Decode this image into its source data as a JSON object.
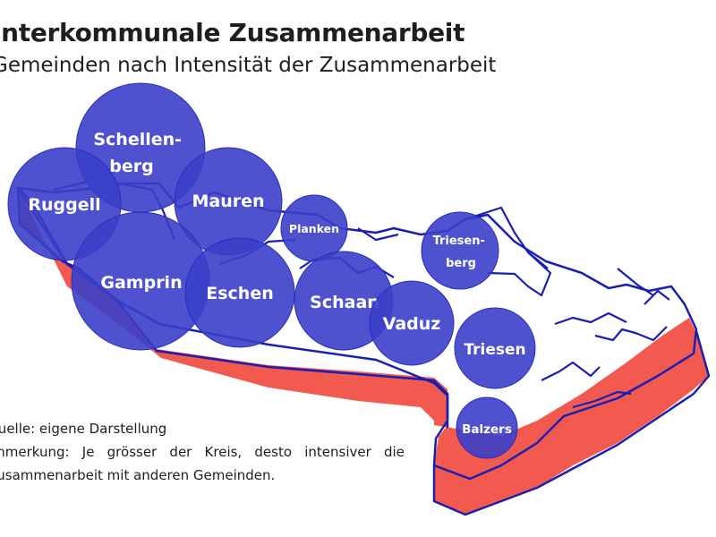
{
  "header": {
    "title": "Interkommunale Zusammenarbeit",
    "subtitle": "Gemeinden nach Intensität der Zusammenarbeit"
  },
  "notes": {
    "source": "Quelle: eigene Darstellung",
    "remark_line1_words": [
      "Anmerkung:",
      "Je",
      "grösser",
      "der",
      "Kreis,",
      "desto",
      "intensiver",
      "die"
    ],
    "remark_line2": "Zusammenarbeit mit anderen Gemeinden."
  },
  "colors": {
    "circle_fill": "#3b3fc9",
    "circle_stroke": "#2a2dbd",
    "outline": "#1a1fb0",
    "extrusion": "#f25a50",
    "text_on_circle": "#ffffff"
  },
  "municipalities": [
    {
      "id": "schellenberg",
      "lines": [
        "Schellen-",
        "berg"
      ]
    },
    {
      "id": "ruggell",
      "lines": [
        "Ruggell"
      ]
    },
    {
      "id": "mauren",
      "lines": [
        "Mauren"
      ]
    },
    {
      "id": "gamprin",
      "lines": [
        "Gamprin"
      ]
    },
    {
      "id": "eschen",
      "lines": [
        "Eschen"
      ]
    },
    {
      "id": "planken",
      "lines": [
        "Planken"
      ]
    },
    {
      "id": "schaan",
      "lines": [
        "Schaan"
      ]
    },
    {
      "id": "vaduz",
      "lines": [
        "Vaduz"
      ]
    },
    {
      "id": "triesenberg",
      "lines": [
        "Triesen-",
        "berg"
      ]
    },
    {
      "id": "triesen",
      "lines": [
        "Triesen"
      ]
    },
    {
      "id": "balzers",
      "lines": [
        "Balzers"
      ]
    }
  ]
}
